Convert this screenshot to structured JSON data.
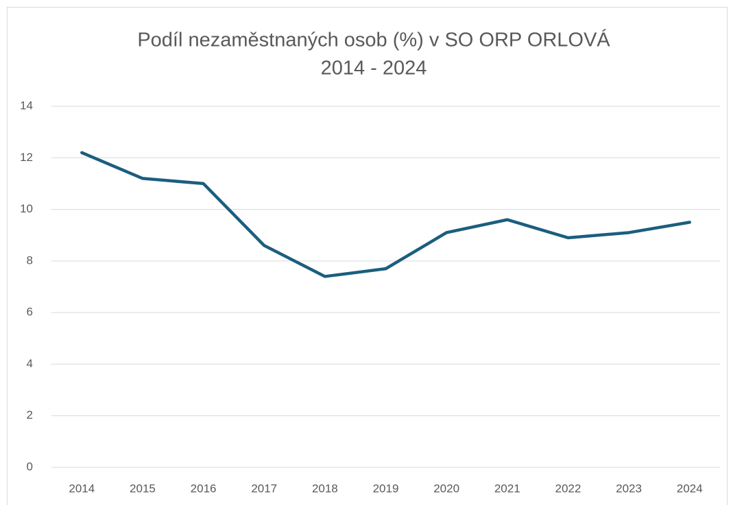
{
  "chart_data": {
    "type": "line",
    "title": [
      "Podíl nezaměstnaných osob (%) v SO ORP ORLOVÁ",
      "2014 - 2024"
    ],
    "categories": [
      "2014",
      "2015",
      "2016",
      "2017",
      "2018",
      "2019",
      "2020",
      "2021",
      "2022",
      "2023",
      "2024"
    ],
    "values": [
      12.2,
      11.2,
      11.0,
      8.6,
      7.4,
      7.7,
      9.1,
      9.6,
      8.9,
      9.1,
      9.5
    ],
    "color": "#1b5e7e",
    "ylim": [
      0,
      14
    ],
    "yticks": [
      0,
      2,
      4,
      6,
      8,
      10,
      12,
      14
    ],
    "grid": true
  }
}
